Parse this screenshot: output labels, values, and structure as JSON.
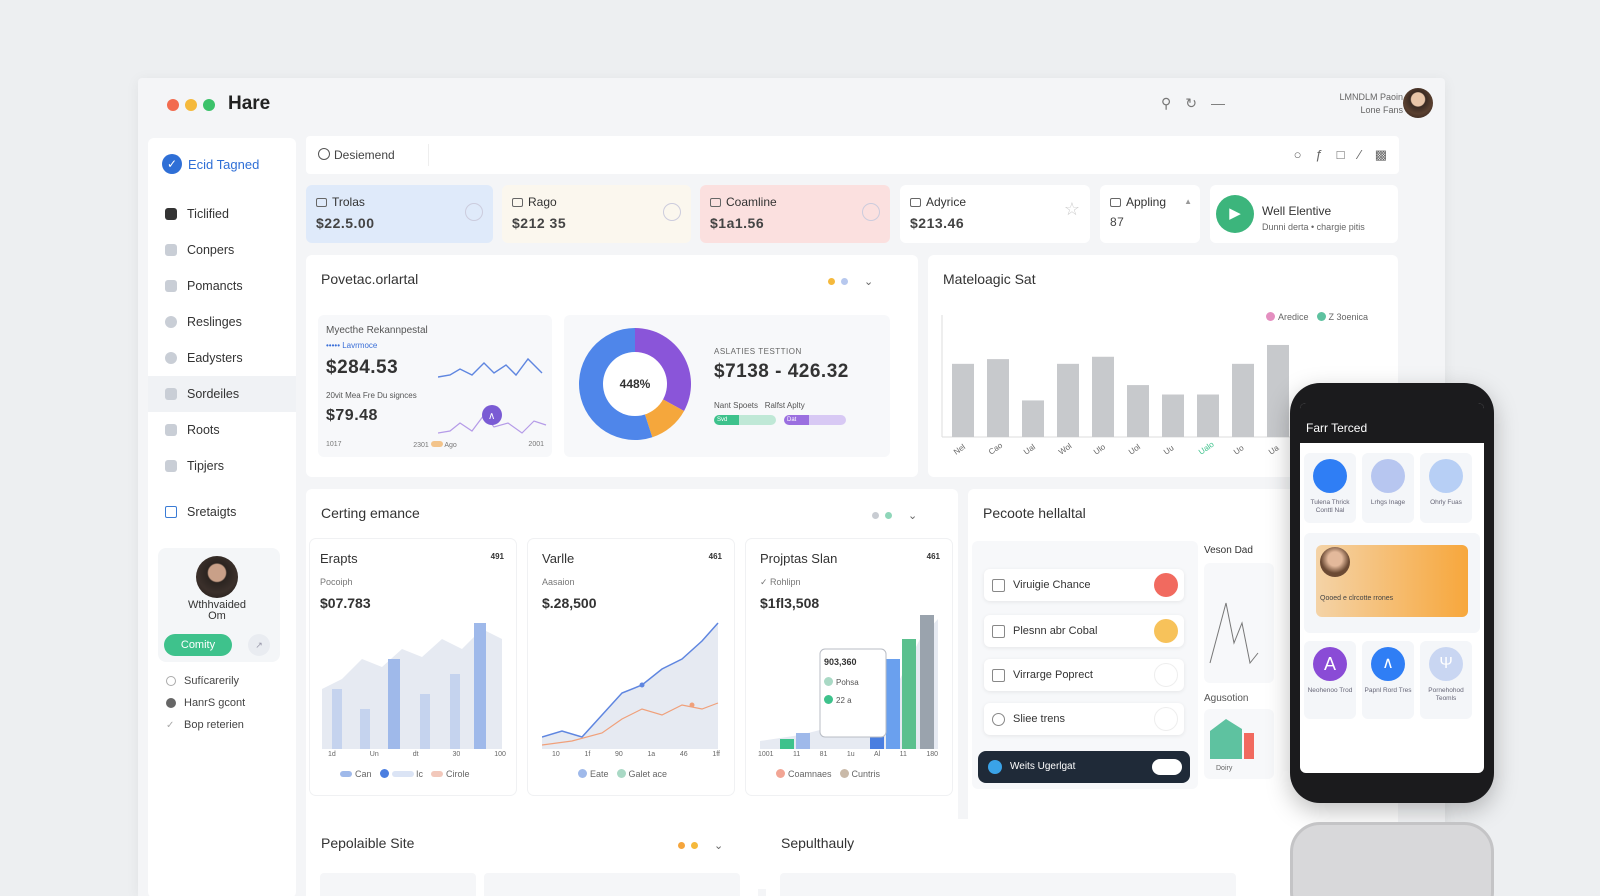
{
  "app": {
    "title": "Hare",
    "dots": [
      "#f26b4f",
      "#f5b93c",
      "#3cc26a"
    ]
  },
  "user": {
    "line1": "LMNDLM Paoin",
    "line2": "Lone Fans"
  },
  "sidebar": {
    "brand": "Ecid Tagned",
    "items": [
      {
        "label": "Ticlified",
        "icon": "folder-icon"
      },
      {
        "label": "Conpers",
        "icon": "user-icon"
      },
      {
        "label": "Pomancts",
        "icon": "chart-icon"
      },
      {
        "label": "Reslinges",
        "icon": "circle-icon"
      },
      {
        "label": "Eadysters",
        "icon": "clock-icon"
      },
      {
        "label": "Sordeiles",
        "icon": "grid-icon"
      },
      {
        "label": "Roots",
        "icon": "chat-icon"
      },
      {
        "label": "Tipjers",
        "icon": "card-icon"
      },
      {
        "label": "Sretaigts",
        "icon": "doc-icon"
      }
    ],
    "profile": {
      "name_line1": "Wthhvaided",
      "name_line2": "Om",
      "button": "Comity"
    },
    "subnav": [
      "Sufícarerily",
      "HanrS gcont",
      "Bop reterien"
    ]
  },
  "search": {
    "value": "Desiemend"
  },
  "stats": [
    {
      "label": "Trolas",
      "value": "$22.5.00",
      "bg": "#dfeafa"
    },
    {
      "label": "Rago",
      "value": "$212 35",
      "bg": "#fbf7ee"
    },
    {
      "label": "Coamline",
      "value": "$1a1.56",
      "bg": "#fbe0df"
    },
    {
      "label": "Adyrice",
      "value": "$213.46",
      "bg": "#ffffff"
    },
    {
      "label": "Appling",
      "value": "87",
      "bg": "#ffffff"
    }
  ],
  "promo": {
    "title": "Well Elentive",
    "subtitle": "Dunni derta • chargie pitis"
  },
  "perf": {
    "title": "Povetac.orlartal",
    "sub_title": "Myecthe Rekannpestal",
    "sub_caption": "••••• Lavrmoce",
    "val1": "$284.53",
    "sub_caption2": "20vit Mea Fre Du signces",
    "val2": "$79.48",
    "axis": [
      "1017",
      "2301",
      "Ago",
      "2001"
    ],
    "donut_label": "448%",
    "donut": [
      0.33,
      0.12,
      0.55
    ],
    "kpi_caption": "ASLATIES TESTTION",
    "kpi_value": "$7138 - 426.32",
    "kpi_sub1": "Nant Spoets",
    "kpi_sub2": "Ralfst Aplty",
    "pill1": "Svd",
    "pill2": "Dat"
  },
  "bar_card": {
    "title": "Mateloagic Sat",
    "legend": [
      "Aredice",
      "Z 3oenica"
    ],
    "legend_colors": [
      "#e48fc0",
      "#5ec2a0"
    ],
    "chart_data": {
      "type": "bar",
      "categories": [
        "Nel",
        "Cao",
        "Ual",
        "Wol",
        "Ulo",
        "Uol",
        "Uu",
        "Ualo",
        "Uo",
        "Ua"
      ],
      "values": [
        62,
        66,
        31,
        62,
        68,
        44,
        36,
        36,
        62,
        78
      ],
      "ylim": [
        0,
        100
      ]
    }
  },
  "certing": {
    "title": "Certing emance",
    "panels": [
      {
        "title": "Erapts",
        "tag": "491",
        "sub": "Pocoiph",
        "value": "$07.783",
        "x": [
          "1d",
          "Un",
          "dt",
          "30",
          "100"
        ],
        "legend": [
          "Can",
          "Ic",
          "Cirole"
        ]
      },
      {
        "title": "Varlle",
        "tag": "461",
        "sub": "Aasaion",
        "value": "$.28,500",
        "x": [
          "10",
          "1f",
          "90",
          "1a",
          "46",
          "1ff"
        ],
        "legend": [
          "Eate",
          "Galet ace"
        ]
      },
      {
        "title": "Projptas Slan",
        "tag": "461",
        "sub": "✓ Rohlipn",
        "value": "$1fl3,508",
        "x": [
          "1001",
          "11",
          "81",
          "1u",
          "Al",
          "11",
          "180"
        ],
        "legend": [
          "Coamnaes",
          "Cuntris"
        ],
        "tooltip": [
          "903,360",
          "Pohsa",
          "22 a"
        ]
      }
    ]
  },
  "tasks": {
    "title": "Pecoote hellaltal",
    "items": [
      {
        "label": "Viruigie Chance",
        "badge": "#f16a5f"
      },
      {
        "label": "Plesnn abr Cobal",
        "badge": "#f7c25a"
      },
      {
        "label": "Virrarge Poprect",
        "badge": "#ffffff"
      },
      {
        "label": "Sliee trens",
        "badge": "#ffffff"
      }
    ],
    "toggle_label": "Weits Ugerlgat",
    "side_title": "Veson Dad",
    "side_title2": "Agusotion",
    "side_caption": "Doiry"
  },
  "bottom": {
    "left_title": "Pepolaible Site",
    "right_title": "Sepulthauly"
  },
  "phone": {
    "title": "Farr Terced",
    "tiles": [
      {
        "label": "Tulena Thrick Conttl Nal",
        "color": "#2f7ef5"
      },
      {
        "label": "Lrhgs Inage",
        "color": "#b7c6f0"
      },
      {
        "label": "Ohrly Fuas",
        "color": "#b7cff5"
      }
    ],
    "tiles2": [
      {
        "label": "Neohenoo Trod",
        "color": "#8a4bd6"
      },
      {
        "label": "Papnl Rord Tres",
        "color": "#2f7ef5"
      },
      {
        "label": "Pornehohod Teomls",
        "color": "#c9d6f2"
      }
    ],
    "card_caption": "Qooed e clrcotte rrones"
  }
}
